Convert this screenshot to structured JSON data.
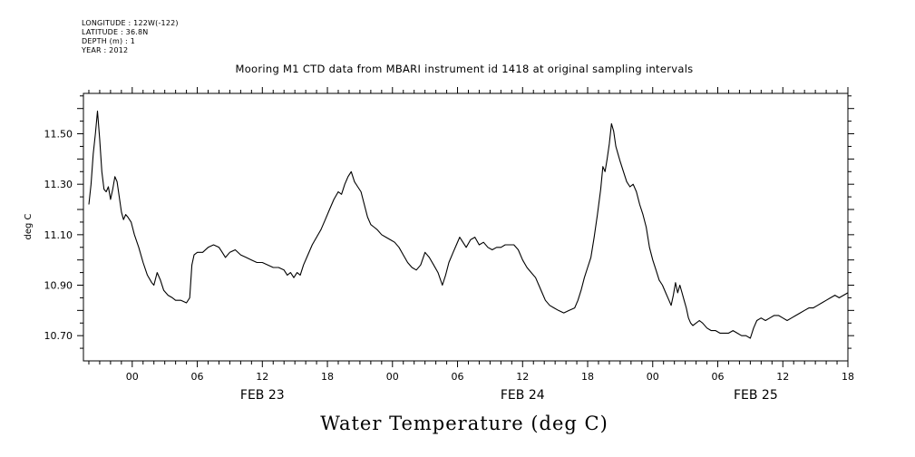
{
  "header": {
    "longitude": "LONGITUDE : 122W(-122)",
    "latitude": "LATITUDE : 36.8N",
    "depth": "DEPTH (m) : 1",
    "year": "YEAR : 2012"
  },
  "chart_data": {
    "type": "line",
    "title": "Mooring M1 CTD data from MBARI instrument id 1418 at original sampling intervals",
    "xlabel": "Water Temperature (deg C)",
    "ylabel": "deg C",
    "x_unit": "hours since 2012-02-22 00:00",
    "xlim": [
      19.5,
      90
    ],
    "ylim": [
      10.6,
      11.66
    ],
    "y_ticks": [
      {
        "value": 10.7,
        "label": "10.70"
      },
      {
        "value": 10.9,
        "label": "10.90"
      },
      {
        "value": 11.1,
        "label": "11.10"
      },
      {
        "value": 11.3,
        "label": "11.30"
      },
      {
        "value": 11.5,
        "label": "11.50"
      }
    ],
    "x_ticks": [
      {
        "value": 24,
        "label": "00"
      },
      {
        "value": 30,
        "label": "06"
      },
      {
        "value": 36,
        "label": "12"
      },
      {
        "value": 42,
        "label": "18"
      },
      {
        "value": 48,
        "label": "00"
      },
      {
        "value": 54,
        "label": "06"
      },
      {
        "value": 60,
        "label": "12"
      },
      {
        "value": 66,
        "label": "18"
      },
      {
        "value": 72,
        "label": "00"
      },
      {
        "value": 78,
        "label": "06"
      },
      {
        "value": 84,
        "label": "12"
      },
      {
        "value": 90,
        "label": "18"
      }
    ],
    "date_labels": [
      {
        "value": 36,
        "label": "FEB 23"
      },
      {
        "value": 60,
        "label": "FEB 24"
      },
      {
        "value": 81.5,
        "label": "FEB 25"
      }
    ],
    "grid": false,
    "series": [
      {
        "color": "#000000",
        "points": [
          [
            20.0,
            11.22
          ],
          [
            20.2,
            11.3
          ],
          [
            20.4,
            11.42
          ],
          [
            20.6,
            11.5
          ],
          [
            20.8,
            11.59
          ],
          [
            21.0,
            11.48
          ],
          [
            21.2,
            11.35
          ],
          [
            21.4,
            11.28
          ],
          [
            21.6,
            11.27
          ],
          [
            21.8,
            11.29
          ],
          [
            22.0,
            11.24
          ],
          [
            22.2,
            11.28
          ],
          [
            22.4,
            11.33
          ],
          [
            22.6,
            11.31
          ],
          [
            22.8,
            11.25
          ],
          [
            23.0,
            11.19
          ],
          [
            23.2,
            11.16
          ],
          [
            23.4,
            11.18
          ],
          [
            23.6,
            11.17
          ],
          [
            23.9,
            11.15
          ],
          [
            24.2,
            11.1
          ],
          [
            24.6,
            11.05
          ],
          [
            25.0,
            10.99
          ],
          [
            25.4,
            10.94
          ],
          [
            25.8,
            10.91
          ],
          [
            26.0,
            10.9
          ],
          [
            26.3,
            10.95
          ],
          [
            26.6,
            10.92
          ],
          [
            26.9,
            10.88
          ],
          [
            27.3,
            10.86
          ],
          [
            27.7,
            10.85
          ],
          [
            28.0,
            10.84
          ],
          [
            28.5,
            10.84
          ],
          [
            29.0,
            10.83
          ],
          [
            29.3,
            10.85
          ],
          [
            29.5,
            10.98
          ],
          [
            29.7,
            11.02
          ],
          [
            30.0,
            11.03
          ],
          [
            30.5,
            11.03
          ],
          [
            31.0,
            11.05
          ],
          [
            31.5,
            11.06
          ],
          [
            32.0,
            11.05
          ],
          [
            32.3,
            11.03
          ],
          [
            32.6,
            11.01
          ],
          [
            33.0,
            11.03
          ],
          [
            33.5,
            11.04
          ],
          [
            34.0,
            11.02
          ],
          [
            34.5,
            11.01
          ],
          [
            35.0,
            11.0
          ],
          [
            35.5,
            10.99
          ],
          [
            36.0,
            10.99
          ],
          [
            36.5,
            10.98
          ],
          [
            37.0,
            10.97
          ],
          [
            37.5,
            10.97
          ],
          [
            38.0,
            10.96
          ],
          [
            38.3,
            10.94
          ],
          [
            38.6,
            10.95
          ],
          [
            38.9,
            10.93
          ],
          [
            39.2,
            10.95
          ],
          [
            39.5,
            10.94
          ],
          [
            39.8,
            10.98
          ],
          [
            40.2,
            11.02
          ],
          [
            40.6,
            11.06
          ],
          [
            41.0,
            11.09
          ],
          [
            41.4,
            11.12
          ],
          [
            41.8,
            11.16
          ],
          [
            42.2,
            11.2
          ],
          [
            42.6,
            11.24
          ],
          [
            43.0,
            11.27
          ],
          [
            43.3,
            11.26
          ],
          [
            43.6,
            11.3
          ],
          [
            43.9,
            11.33
          ],
          [
            44.2,
            11.35
          ],
          [
            44.5,
            11.31
          ],
          [
            44.8,
            11.29
          ],
          [
            45.1,
            11.27
          ],
          [
            45.4,
            11.22
          ],
          [
            45.7,
            11.17
          ],
          [
            46.0,
            11.14
          ],
          [
            46.3,
            11.13
          ],
          [
            46.6,
            11.12
          ],
          [
            47.0,
            11.1
          ],
          [
            47.4,
            11.09
          ],
          [
            47.8,
            11.08
          ],
          [
            48.2,
            11.07
          ],
          [
            48.6,
            11.05
          ],
          [
            49.0,
            11.02
          ],
          [
            49.4,
            10.99
          ],
          [
            49.8,
            10.97
          ],
          [
            50.2,
            10.96
          ],
          [
            50.6,
            10.98
          ],
          [
            51.0,
            11.03
          ],
          [
            51.4,
            11.01
          ],
          [
            51.8,
            10.98
          ],
          [
            52.2,
            10.95
          ],
          [
            52.6,
            10.9
          ],
          [
            52.9,
            10.94
          ],
          [
            53.2,
            10.99
          ],
          [
            53.6,
            11.03
          ],
          [
            53.9,
            11.06
          ],
          [
            54.2,
            11.09
          ],
          [
            54.5,
            11.07
          ],
          [
            54.8,
            11.05
          ],
          [
            55.2,
            11.08
          ],
          [
            55.6,
            11.09
          ],
          [
            56.0,
            11.06
          ],
          [
            56.4,
            11.07
          ],
          [
            56.8,
            11.05
          ],
          [
            57.2,
            11.04
          ],
          [
            57.6,
            11.05
          ],
          [
            58.0,
            11.05
          ],
          [
            58.4,
            11.06
          ],
          [
            58.8,
            11.06
          ],
          [
            59.2,
            11.06
          ],
          [
            59.6,
            11.04
          ],
          [
            60.0,
            11.0
          ],
          [
            60.4,
            10.97
          ],
          [
            60.8,
            10.95
          ],
          [
            61.2,
            10.93
          ],
          [
            61.5,
            10.9
          ],
          [
            61.8,
            10.87
          ],
          [
            62.1,
            10.84
          ],
          [
            62.5,
            10.82
          ],
          [
            62.9,
            10.81
          ],
          [
            63.3,
            10.8
          ],
          [
            63.8,
            10.79
          ],
          [
            64.3,
            10.8
          ],
          [
            64.8,
            10.81
          ],
          [
            65.1,
            10.84
          ],
          [
            65.4,
            10.88
          ],
          [
            65.7,
            10.93
          ],
          [
            66.0,
            10.97
          ],
          [
            66.3,
            11.01
          ],
          [
            66.6,
            11.09
          ],
          [
            66.9,
            11.18
          ],
          [
            67.2,
            11.28
          ],
          [
            67.4,
            11.37
          ],
          [
            67.6,
            11.35
          ],
          [
            67.8,
            11.4
          ],
          [
            68.0,
            11.46
          ],
          [
            68.2,
            11.54
          ],
          [
            68.4,
            11.51
          ],
          [
            68.6,
            11.45
          ],
          [
            68.8,
            11.42
          ],
          [
            69.0,
            11.39
          ],
          [
            69.3,
            11.35
          ],
          [
            69.6,
            11.31
          ],
          [
            69.9,
            11.29
          ],
          [
            70.2,
            11.3
          ],
          [
            70.5,
            11.27
          ],
          [
            70.8,
            11.22
          ],
          [
            71.1,
            11.18
          ],
          [
            71.4,
            11.13
          ],
          [
            71.7,
            11.05
          ],
          [
            72.0,
            11.0
          ],
          [
            72.3,
            10.96
          ],
          [
            72.6,
            10.92
          ],
          [
            72.9,
            10.9
          ],
          [
            73.2,
            10.87
          ],
          [
            73.5,
            10.84
          ],
          [
            73.7,
            10.82
          ],
          [
            73.9,
            10.86
          ],
          [
            74.1,
            10.91
          ],
          [
            74.3,
            10.87
          ],
          [
            74.5,
            10.9
          ],
          [
            74.7,
            10.87
          ],
          [
            74.9,
            10.84
          ],
          [
            75.1,
            10.81
          ],
          [
            75.3,
            10.77
          ],
          [
            75.5,
            10.75
          ],
          [
            75.7,
            10.74
          ],
          [
            76.0,
            10.75
          ],
          [
            76.3,
            10.76
          ],
          [
            76.6,
            10.75
          ],
          [
            77.0,
            10.73
          ],
          [
            77.4,
            10.72
          ],
          [
            77.8,
            10.72
          ],
          [
            78.2,
            10.71
          ],
          [
            78.6,
            10.71
          ],
          [
            79.0,
            10.71
          ],
          [
            79.4,
            10.72
          ],
          [
            79.8,
            10.71
          ],
          [
            80.2,
            10.7
          ],
          [
            80.6,
            10.7
          ],
          [
            81.0,
            10.69
          ],
          [
            81.3,
            10.73
          ],
          [
            81.6,
            10.76
          ],
          [
            82.0,
            10.77
          ],
          [
            82.4,
            10.76
          ],
          [
            82.8,
            10.77
          ],
          [
            83.2,
            10.78
          ],
          [
            83.6,
            10.78
          ],
          [
            84.0,
            10.77
          ],
          [
            84.4,
            10.76
          ],
          [
            84.8,
            10.77
          ],
          [
            85.2,
            10.78
          ],
          [
            85.6,
            10.79
          ],
          [
            86.0,
            10.8
          ],
          [
            86.4,
            10.81
          ],
          [
            86.8,
            10.81
          ],
          [
            87.2,
            10.82
          ],
          [
            87.6,
            10.83
          ],
          [
            88.0,
            10.84
          ],
          [
            88.4,
            10.85
          ],
          [
            88.8,
            10.86
          ],
          [
            89.2,
            10.85
          ],
          [
            89.6,
            10.86
          ],
          [
            90.0,
            10.87
          ]
        ]
      }
    ]
  }
}
